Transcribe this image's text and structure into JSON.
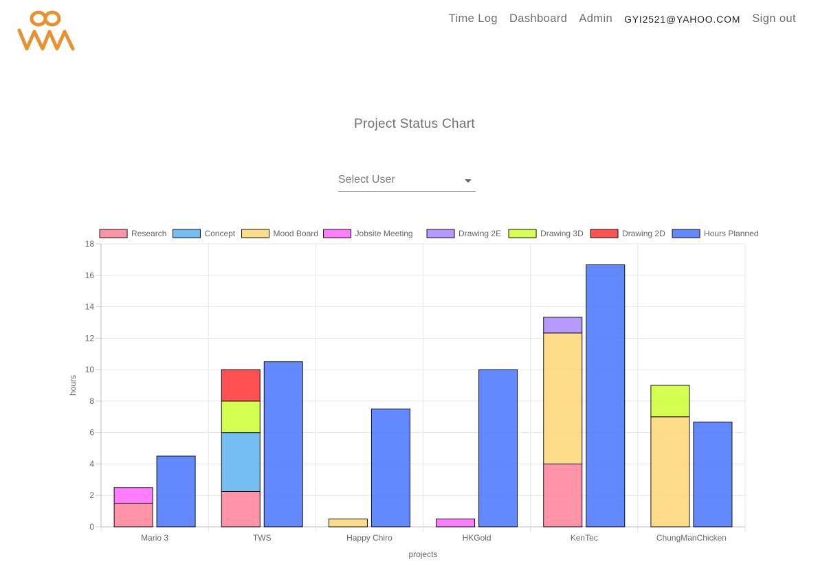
{
  "nav": {
    "time_log": "Time Log",
    "dashboard": "Dashboard",
    "admin": "Admin",
    "user_email": "GYI2521@YAHOO.COM",
    "sign_out": "Sign out"
  },
  "page_title": "Project Status Chart",
  "user_select": {
    "placeholder": "Select User"
  },
  "colors": {
    "brand": "#E8912E",
    "nav_text": "#6d6d6d"
  },
  "chart_data": {
    "type": "bar",
    "stacked": true,
    "xlabel": "projects",
    "ylabel": "hours",
    "ylim": [
      0,
      18
    ],
    "yticks": [
      0,
      2,
      4,
      6,
      8,
      10,
      12,
      14,
      16,
      18
    ],
    "grid": true,
    "legend_position": "top",
    "categories": [
      "Mario 3",
      "TWS",
      "Happy Chiro",
      "HKGold",
      "KenTec",
      "ChungManChicken"
    ],
    "series": [
      {
        "name": "Research",
        "stack": "actual",
        "color": "#FF8199",
        "values": [
          1.5,
          2.25,
          0,
          0,
          4,
          0
        ]
      },
      {
        "name": "Concept",
        "stack": "actual",
        "color": "#5DB3EE",
        "values": [
          0,
          3.75,
          0,
          0,
          0,
          0
        ]
      },
      {
        "name": "Mood Board",
        "stack": "actual",
        "color": "#FFD676",
        "values": [
          0,
          0,
          0.5,
          0,
          8.33,
          7
        ]
      },
      {
        "name": "Jobsite Meeting",
        "stack": "actual",
        "color": "#FF66FF",
        "values": [
          1,
          0,
          0,
          0.5,
          0,
          0
        ]
      },
      {
        "name": "Drawing 2E",
        "stack": "actual",
        "color": "#AA88FF",
        "values": [
          0,
          0,
          0,
          0,
          1,
          0
        ]
      },
      {
        "name": "Drawing 3D",
        "stack": "actual",
        "color": "#CCFF33",
        "values": [
          0,
          2,
          0,
          0,
          0,
          2
        ]
      },
      {
        "name": "Drawing 2D",
        "stack": "actual",
        "color": "#FF3333",
        "values": [
          0,
          2,
          0,
          0,
          0,
          0
        ]
      },
      {
        "name": "Hours Planned",
        "stack": "planned",
        "color": "#4874FF",
        "values": [
          4.5,
          10.5,
          7.5,
          10,
          16.67,
          6.67
        ]
      }
    ]
  }
}
